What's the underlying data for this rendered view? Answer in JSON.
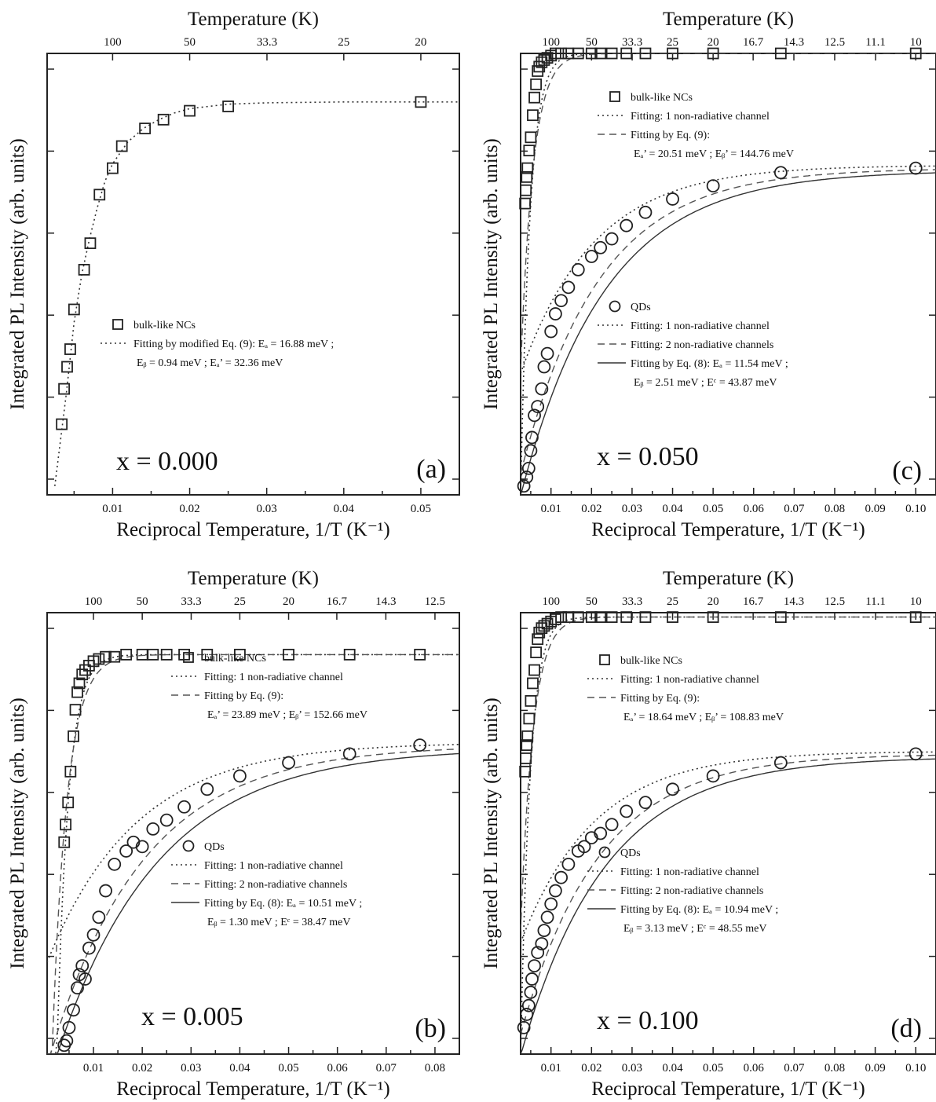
{
  "chart_data": [
    {
      "type": "scatter",
      "panel": "(a)",
      "label": "x = 0.000",
      "xlabel": "Reciprocal Temperature, 1/T (K⁻¹)",
      "ylabel": "Integrated PL Intensity (arb. units)",
      "top_axis_label": "Temperature (K)",
      "xlim": [
        0.0015,
        0.055
      ],
      "ylim": [
        0,
        1
      ],
      "x_ticks": [
        0.01,
        0.02,
        0.03,
        0.04,
        0.05
      ],
      "x_tick_labels": [
        "0.01",
        "0.02",
        "0.03",
        "0.04",
        "0.05"
      ],
      "top_ticks": [
        100,
        50,
        33.3,
        25,
        20
      ],
      "top_tick_labels": [
        "100",
        "50",
        "33.3",
        "25",
        "20"
      ],
      "series": [
        {
          "name": "bulk-like NCs",
          "marker": "square",
          "x": [
            0.0034,
            0.0037,
            0.0041,
            0.0045,
            0.005,
            0.0063,
            0.0071,
            0.0083,
            0.01,
            0.0112,
            0.0142,
            0.0166,
            0.02,
            0.025,
            0.05
          ],
          "y": [
            0.16,
            0.24,
            0.29,
            0.33,
            0.42,
            0.51,
            0.57,
            0.68,
            0.74,
            0.79,
            0.83,
            0.85,
            0.87,
            0.88,
            0.89
          ]
        },
        {
          "name": "Fitting by modified Eq. (9)",
          "style": "dotted",
          "x": [
            0.0025,
            0.003,
            0.0035,
            0.004,
            0.0045,
            0.005,
            0.006,
            0.007,
            0.008,
            0.009,
            0.01,
            0.012,
            0.014,
            0.016,
            0.018,
            0.02,
            0.025,
            0.03,
            0.04,
            0.05,
            0.055
          ],
          "y": [
            0.02,
            0.09,
            0.16,
            0.23,
            0.31,
            0.39,
            0.5,
            0.58,
            0.65,
            0.71,
            0.75,
            0.8,
            0.83,
            0.85,
            0.865,
            0.875,
            0.885,
            0.888,
            0.89,
            0.89,
            0.89
          ]
        }
      ],
      "legend": [
        {
          "marker": "square",
          "text": "bulk-like NCs"
        },
        {
          "style": "dotted",
          "text": "Fitting by modified Eq. (9): Eₐ = 16.88 meV ;"
        },
        {
          "style": "none",
          "text": "Eᵦ = 0.94 meV ; Eₐ’ = 32.36 meV"
        }
      ]
    },
    {
      "type": "scatter",
      "panel": "(c)",
      "label": "x = 0.050",
      "xlabel": "Reciprocal Temperature, 1/T (K⁻¹)",
      "ylabel": "Integrated PL Intensity (arb. units)",
      "top_axis_label": "Temperature (K)",
      "xlim": [
        0.0025,
        0.105
      ],
      "ylim": [
        0,
        1
      ],
      "x_ticks": [
        0.01,
        0.02,
        0.03,
        0.04,
        0.05,
        0.06,
        0.07,
        0.08,
        0.09,
        0.1
      ],
      "x_tick_labels": [
        "0.01",
        "0.02",
        "0.03",
        "0.04",
        "0.05",
        "0.06",
        "0.07",
        "0.08",
        "0.09",
        "0.10"
      ],
      "top_ticks": [
        100,
        50,
        33.3,
        25,
        20,
        16.7,
        14.3,
        12.5,
        11.1,
        10
      ],
      "top_tick_labels": [
        "100",
        "50",
        "33.3",
        "25",
        "20",
        "16.7",
        "14.3",
        "12.5",
        "11.1",
        "10"
      ],
      "series": [
        {
          "name": "bulk-like NCs",
          "marker": "square",
          "x": [
            0.0036,
            0.0038,
            0.004,
            0.0042,
            0.0046,
            0.005,
            0.0055,
            0.0059,
            0.0063,
            0.0067,
            0.0071,
            0.0077,
            0.0083,
            0.0091,
            0.01,
            0.0111,
            0.0125,
            0.0143,
            0.0167,
            0.02,
            0.0222,
            0.025,
            0.0286,
            0.0333,
            0.04,
            0.05,
            0.0667,
            0.1
          ],
          "y": [
            0.66,
            0.69,
            0.72,
            0.74,
            0.78,
            0.81,
            0.86,
            0.9,
            0.93,
            0.96,
            0.97,
            0.98,
            0.985,
            0.99,
            0.995,
            1.0,
            1.0,
            1.0,
            1.0,
            1.0,
            1.0,
            1.0,
            1.0,
            1.0,
            1.0,
            1.0,
            1.0,
            1.0
          ]
        },
        {
          "name": "QDs",
          "marker": "circle",
          "x": [
            0.0033,
            0.004,
            0.0045,
            0.005,
            0.0053,
            0.0059,
            0.0067,
            0.0077,
            0.0083,
            0.0091,
            0.01,
            0.0111,
            0.0125,
            0.0143,
            0.0167,
            0.02,
            0.0222,
            0.025,
            0.0286,
            0.0333,
            0.04,
            0.05,
            0.0667,
            0.1
          ],
          "y": [
            0.02,
            0.04,
            0.06,
            0.1,
            0.13,
            0.18,
            0.2,
            0.24,
            0.29,
            0.32,
            0.37,
            0.41,
            0.44,
            0.47,
            0.51,
            0.54,
            0.56,
            0.58,
            0.61,
            0.64,
            0.67,
            0.7,
            0.73,
            0.74
          ]
        }
      ],
      "legend": [
        {
          "marker": "square",
          "text": "bulk-like NCs"
        },
        {
          "style": "dotted",
          "text": "Fitting: 1 non-radiative channel"
        },
        {
          "style": "dashed",
          "text": "Fitting by Eq. (9):"
        },
        {
          "style": "none",
          "text": "Eₐ’ = 20.51 meV ; Eᵦ’ = 144.76 meV"
        },
        {
          "marker": "circle",
          "text": "QDs"
        },
        {
          "style": "dotted",
          "text": "Fitting: 1 non-radiative channel"
        },
        {
          "style": "dashed",
          "text": "Fitting: 2 non-radiative channels"
        },
        {
          "style": "solid",
          "text": "Fitting by Eq. (8): Eₐ = 11.54 meV ;"
        },
        {
          "style": "none",
          "text": "Eᵦ = 2.51 meV ; Eᶜ = 43.87 meV"
        }
      ]
    },
    {
      "type": "scatter",
      "panel": "(b)",
      "label": "x = 0.005",
      "xlabel": "Reciprocal Temperature, 1/T (K⁻¹)",
      "ylabel": "Integrated PL Intensity (arb. units)",
      "top_axis_label": "Temperature (K)",
      "xlim": [
        0.0005,
        0.085
      ],
      "ylim": [
        0,
        1
      ],
      "x_ticks": [
        0.01,
        0.02,
        0.03,
        0.04,
        0.05,
        0.06,
        0.07,
        0.08
      ],
      "x_tick_labels": [
        "0.01",
        "0.02",
        "0.03",
        "0.04",
        "0.05",
        "0.06",
        "0.07",
        "0.08"
      ],
      "top_ticks": [
        100,
        50,
        33.3,
        25,
        20,
        16.7,
        14.3,
        12.5
      ],
      "top_tick_labels": [
        "100",
        "50",
        "33.3",
        "25",
        "20",
        "16.7",
        "14.3",
        "12.5"
      ],
      "series": [
        {
          "name": "bulk-like NCs",
          "marker": "square",
          "x": [
            0.004,
            0.0043,
            0.0048,
            0.0053,
            0.0059,
            0.0063,
            0.0067,
            0.0071,
            0.0077,
            0.0083,
            0.0091,
            0.01,
            0.0111,
            0.0125,
            0.0143,
            0.0167,
            0.02,
            0.0222,
            0.025,
            0.0286,
            0.0333,
            0.04,
            0.05,
            0.0625,
            0.0769
          ],
          "y": [
            0.48,
            0.52,
            0.57,
            0.64,
            0.72,
            0.78,
            0.82,
            0.84,
            0.86,
            0.87,
            0.88,
            0.89,
            0.895,
            0.9,
            0.9,
            0.905,
            0.905,
            0.905,
            0.905,
            0.905,
            0.905,
            0.905,
            0.905,
            0.905,
            0.905
          ]
        },
        {
          "name": "QDs",
          "marker": "circle",
          "x": [
            0.004,
            0.0045,
            0.005,
            0.0059,
            0.0067,
            0.0071,
            0.0077,
            0.0083,
            0.0091,
            0.01,
            0.0111,
            0.0125,
            0.0143,
            0.0167,
            0.0182,
            0.02,
            0.0222,
            0.025,
            0.0286,
            0.0333,
            0.04,
            0.05,
            0.0625,
            0.0769
          ],
          "y": [
            0.02,
            0.03,
            0.06,
            0.1,
            0.15,
            0.18,
            0.2,
            0.17,
            0.24,
            0.27,
            0.31,
            0.37,
            0.43,
            0.46,
            0.48,
            0.47,
            0.51,
            0.53,
            0.56,
            0.6,
            0.63,
            0.66,
            0.68,
            0.7
          ]
        }
      ],
      "legend": [
        {
          "marker": "square",
          "text": "bulk-like NCs"
        },
        {
          "style": "dotted",
          "text": "Fitting: 1 non-radiative channel"
        },
        {
          "style": "dashed",
          "text": "Fitting by Eq. (9):"
        },
        {
          "style": "none",
          "text": "Eₐ’ = 23.89 meV ; Eᵦ’ = 152.66 meV"
        },
        {
          "marker": "circle",
          "text": "QDs"
        },
        {
          "style": "dotted",
          "text": "Fitting: 1 non-radiative channel"
        },
        {
          "style": "dashed",
          "text": "Fitting: 2 non-radiative channels"
        },
        {
          "style": "solid",
          "text": "Fitting by Eq. (8): Eₐ = 10.51 meV ;"
        },
        {
          "style": "none",
          "text": "Eᵦ = 1.30 meV ; Eᶜ = 38.47 meV"
        }
      ]
    },
    {
      "type": "scatter",
      "panel": "(d)",
      "label": "x = 0.100",
      "xlabel": "Reciprocal Temperature, 1/T (K⁻¹)",
      "ylabel": "Integrated PL Intensity (arb. units)",
      "top_axis_label": "Temperature (K)",
      "xlim": [
        0.0025,
        0.105
      ],
      "ylim": [
        0,
        1
      ],
      "x_ticks": [
        0.01,
        0.02,
        0.03,
        0.04,
        0.05,
        0.06,
        0.07,
        0.08,
        0.09,
        0.1
      ],
      "x_tick_labels": [
        "0.01",
        "0.02",
        "0.03",
        "0.04",
        "0.05",
        "0.06",
        "0.07",
        "0.08",
        "0.09",
        "0.10"
      ],
      "top_ticks": [
        100,
        50,
        33.3,
        25,
        20,
        16.7,
        14.3,
        12.5,
        11.1,
        10
      ],
      "top_tick_labels": [
        "100",
        "50",
        "33.3",
        "25",
        "20",
        "16.7",
        "14.3",
        "12.5",
        "11.1",
        "10"
      ],
      "series": [
        {
          "name": "bulk-like NCs",
          "marker": "square",
          "x": [
            0.0036,
            0.0038,
            0.004,
            0.0042,
            0.0046,
            0.005,
            0.0055,
            0.0059,
            0.0063,
            0.0067,
            0.0071,
            0.0077,
            0.0083,
            0.0091,
            0.01,
            0.0111,
            0.0125,
            0.0143,
            0.0167,
            0.02,
            0.0222,
            0.025,
            0.0286,
            0.0333,
            0.04,
            0.05,
            0.0667,
            0.1
          ],
          "y": [
            0.64,
            0.67,
            0.7,
            0.72,
            0.76,
            0.8,
            0.84,
            0.87,
            0.91,
            0.94,
            0.955,
            0.965,
            0.97,
            0.975,
            0.98,
            0.985,
            0.99,
            0.99,
            0.99,
            0.99,
            0.99,
            0.99,
            0.99,
            0.99,
            0.99,
            0.99,
            0.99,
            0.99
          ]
        },
        {
          "name": "QDs",
          "marker": "circle",
          "x": [
            0.0033,
            0.004,
            0.0045,
            0.005,
            0.0053,
            0.0059,
            0.0067,
            0.0077,
            0.0083,
            0.0091,
            0.01,
            0.0111,
            0.0125,
            0.0143,
            0.0167,
            0.0182,
            0.02,
            0.0222,
            0.025,
            0.0286,
            0.0333,
            0.04,
            0.05,
            0.0667,
            0.1
          ],
          "y": [
            0.06,
            0.09,
            0.11,
            0.14,
            0.17,
            0.2,
            0.23,
            0.25,
            0.28,
            0.31,
            0.34,
            0.37,
            0.4,
            0.43,
            0.46,
            0.47,
            0.49,
            0.5,
            0.52,
            0.55,
            0.57,
            0.6,
            0.63,
            0.66,
            0.68
          ]
        }
      ],
      "legend": [
        {
          "marker": "square",
          "text": "bulk-like NCs"
        },
        {
          "style": "dotted",
          "text": "Fitting: 1 non-radiative channel"
        },
        {
          "style": "dashed",
          "text": "Fitting by Eq. (9):"
        },
        {
          "style": "none",
          "text": "Eₐ’ = 18.64 meV ; Eᵦ’ = 108.83 meV"
        },
        {
          "marker": "circle",
          "text": "QDs"
        },
        {
          "style": "dotted",
          "text": "Fitting: 1 non-radiative channel"
        },
        {
          "style": "dashed",
          "text": "Fitting: 2 non-radiative channels"
        },
        {
          "style": "solid",
          "text": "Fitting by Eq. (8): Eₐ = 10.94 meV ;"
        },
        {
          "style": "none",
          "text": "Eᵦ = 3.13 meV ; Eᶜ = 48.55 meV"
        }
      ]
    }
  ]
}
